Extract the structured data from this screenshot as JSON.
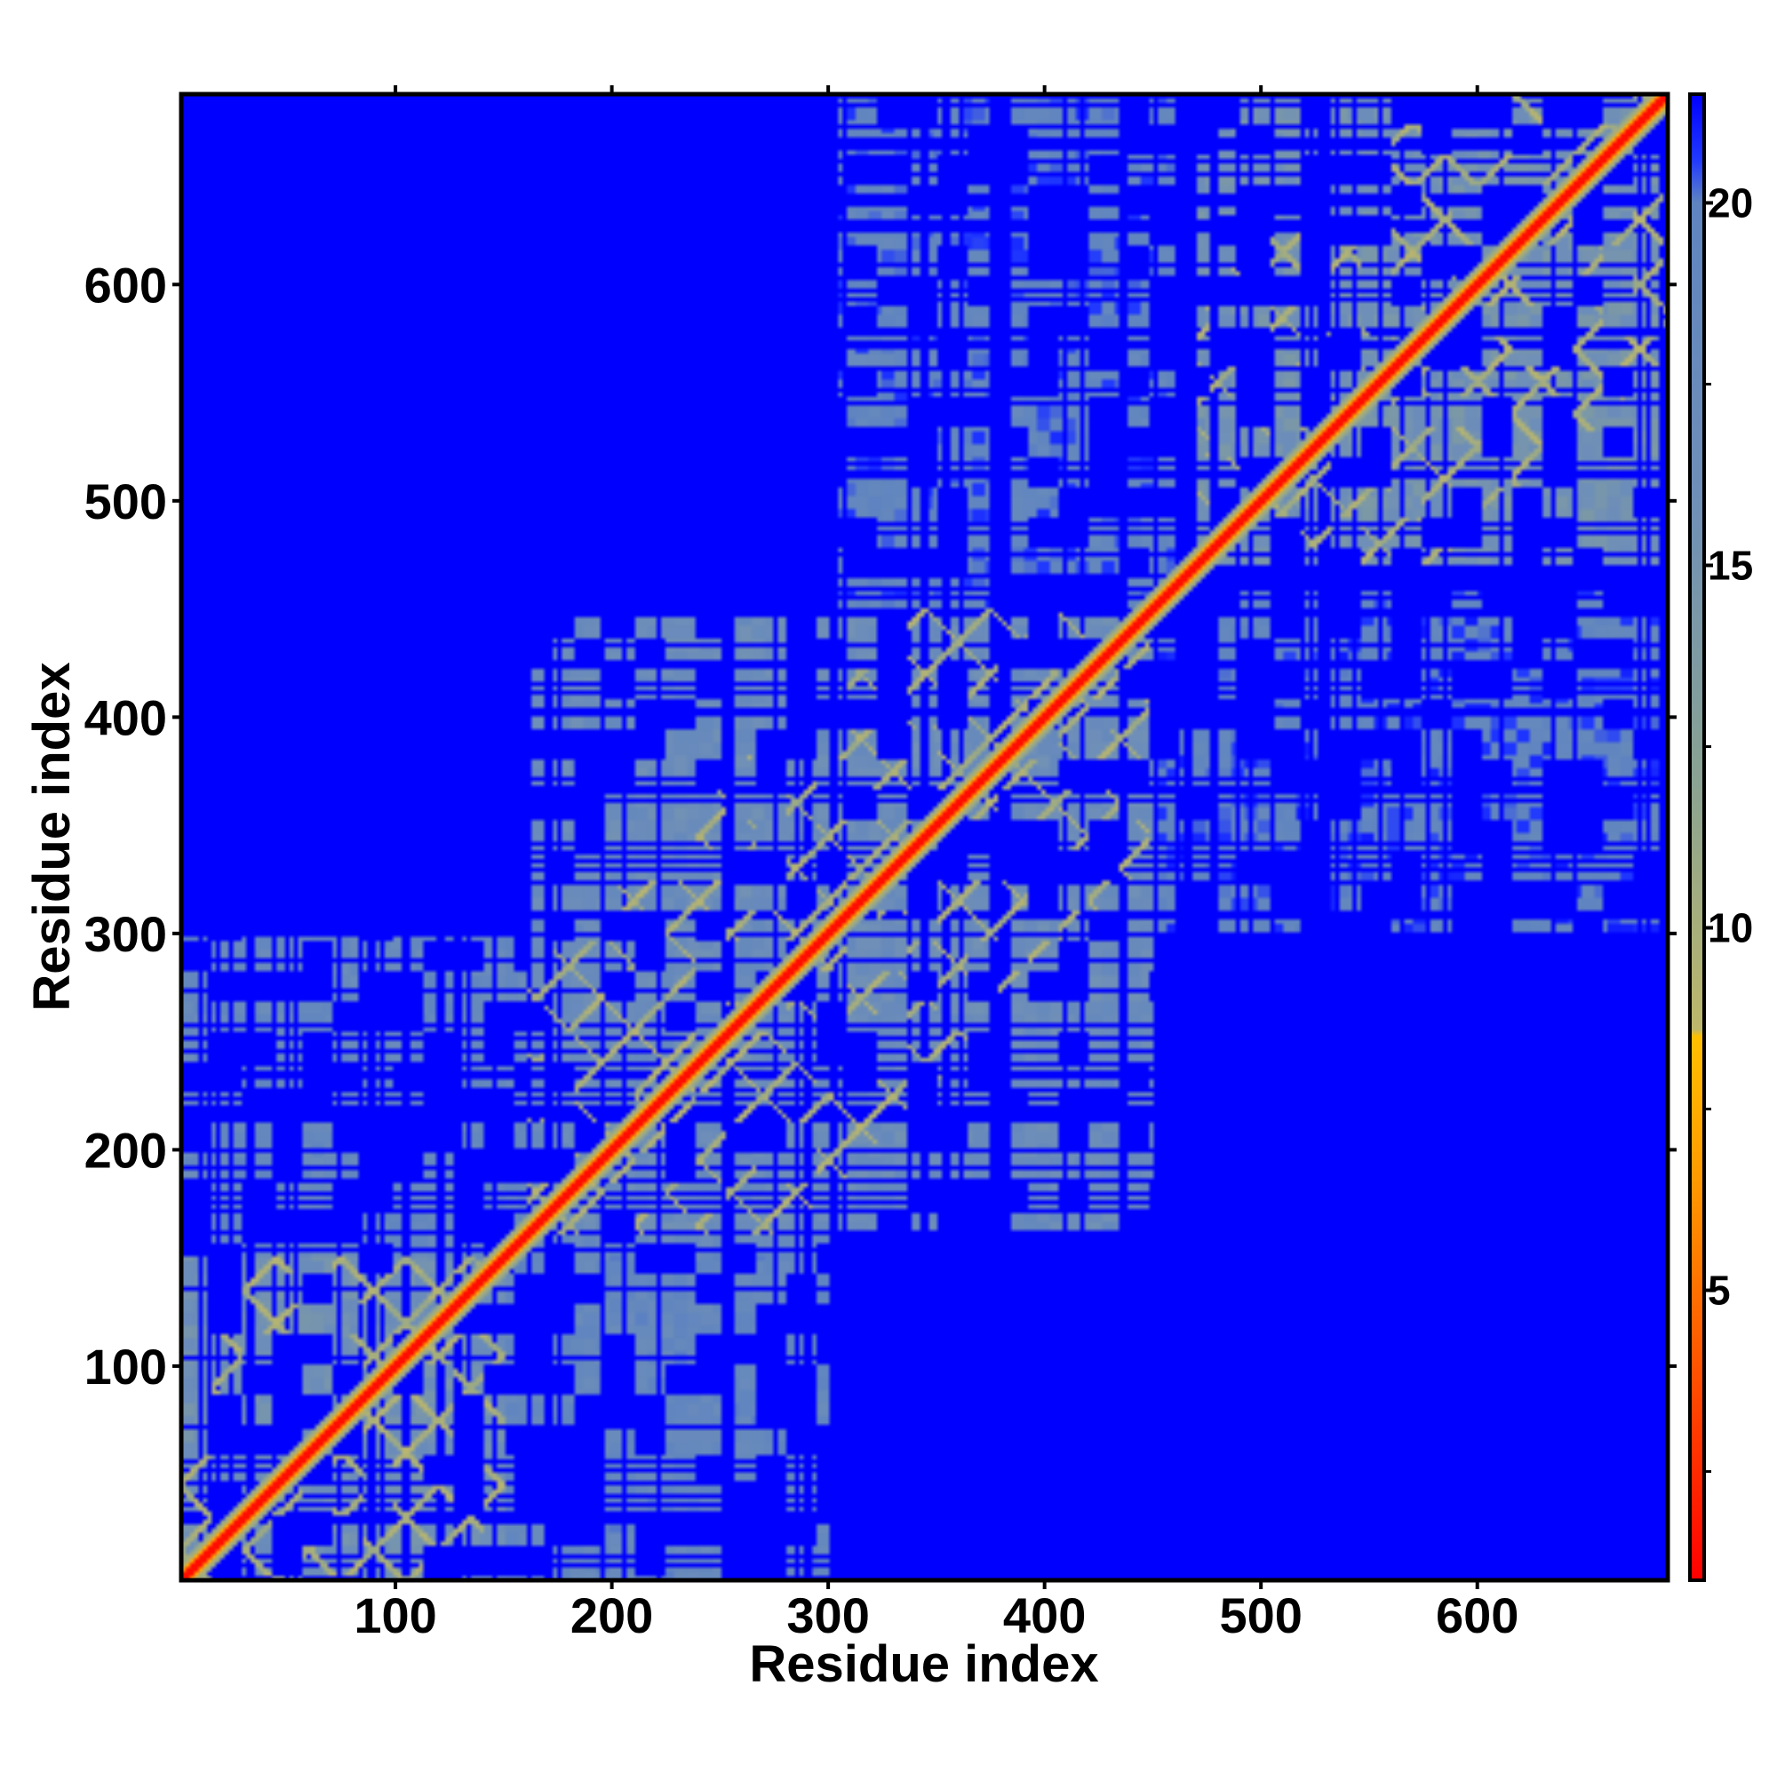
{
  "chart_data": {
    "type": "heatmap",
    "title": "",
    "xlabel": "Residue index",
    "ylabel": "Residue index",
    "xlim": [
      1,
      688
    ],
    "ylim": [
      1,
      688
    ],
    "x_ticks": [
      100,
      200,
      300,
      400,
      500,
      600
    ],
    "y_ticks": [
      100,
      200,
      300,
      400,
      500,
      600
    ],
    "colorbar": {
      "ticks": [
        5,
        10,
        15,
        20
      ],
      "range": [
        1,
        21.5
      ],
      "stops": [
        {
          "value": 1,
          "color": "#ff0000"
        },
        {
          "value": 4,
          "color": "#ff5500"
        },
        {
          "value": 6.5,
          "color": "#ff9900"
        },
        {
          "value": 8.5,
          "color": "#ffbf00"
        },
        {
          "value": 8.6,
          "color": "#bdb76b"
        },
        {
          "value": 12,
          "color": "#8aa392"
        },
        {
          "value": 16,
          "color": "#6f8fb8"
        },
        {
          "value": 20,
          "color": "#5f84c0"
        },
        {
          "value": 20.6,
          "color": "#2038ff"
        },
        {
          "value": 21.5,
          "color": "#0000ff"
        }
      ]
    },
    "colors": {
      "background": "#0000ff",
      "mid": "#5f84c0",
      "near": "#ffbf00",
      "contact": "#ff0000"
    },
    "domains": [
      {
        "start": 1,
        "end": 150,
        "level": 16
      },
      {
        "start": 160,
        "end": 450,
        "level": 17
      },
      {
        "start": 470,
        "end": 688,
        "level": 15.5
      }
    ],
    "interdomain_blocks": [
      {
        "x": [
          1,
          300
        ],
        "y": [
          150,
          300
        ],
        "level": 18.2
      },
      {
        "x": [
          150,
          300
        ],
        "y": [
          1,
          150
        ],
        "level": 18.6
      },
      {
        "x": [
          300,
          460
        ],
        "y": [
          430,
          688
        ],
        "level": 19.3
      },
      {
        "x": [
          430,
          688
        ],
        "y": [
          300,
          460
        ],
        "level": 19.6
      }
    ]
  }
}
